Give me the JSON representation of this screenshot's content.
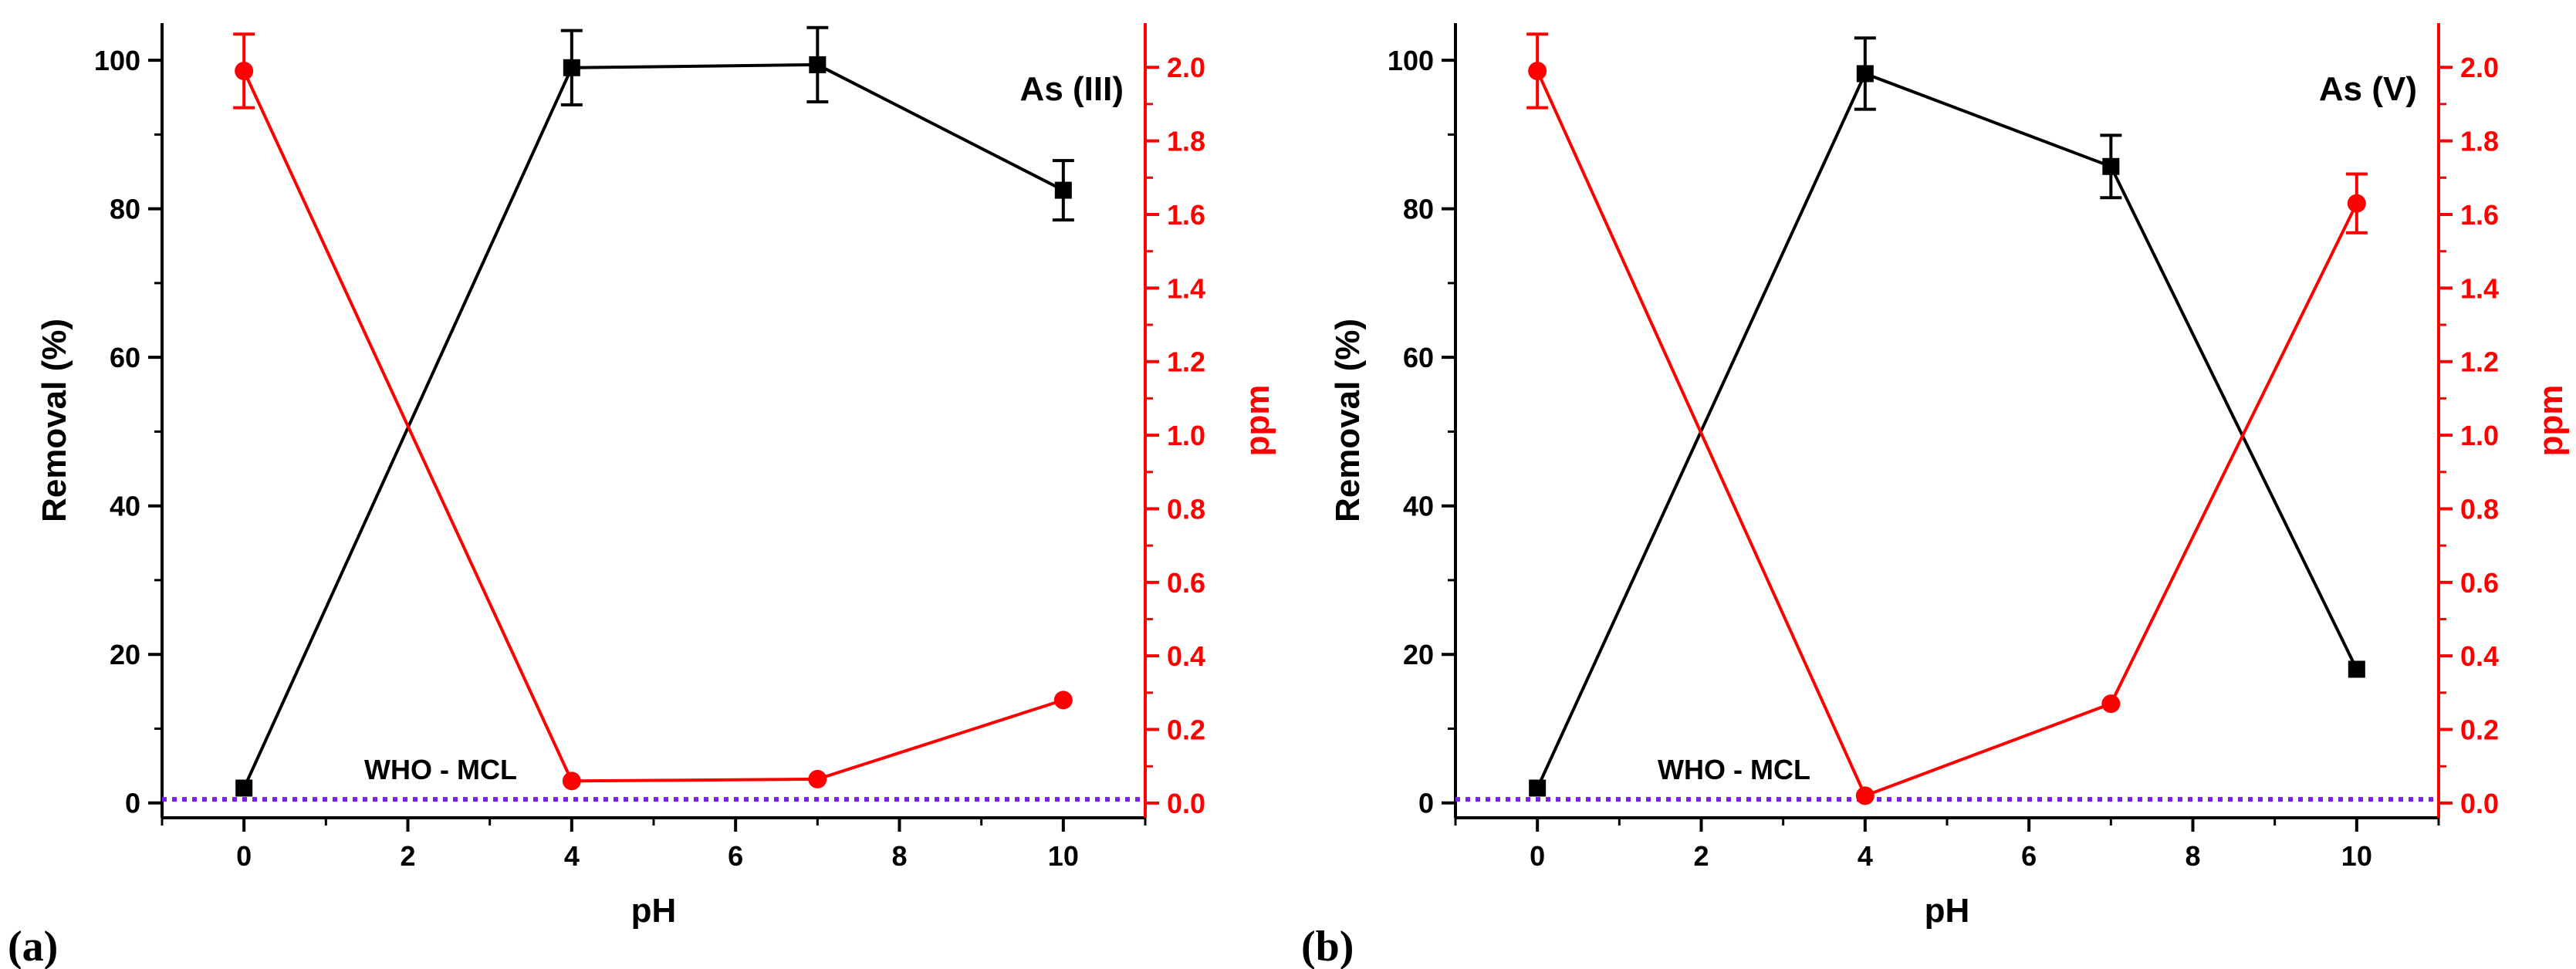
{
  "colors": {
    "removal": "#000000",
    "ppm": "#ff0000",
    "mcl": "#7a1fe6",
    "axis": "#000000"
  },
  "chart_data": [
    {
      "type": "line",
      "panel_label": "(a)",
      "title": "As (III)",
      "xlabel": "pH",
      "ylabel": "Removal (%)",
      "y2label": "ppm",
      "xlim": [
        -1,
        11
      ],
      "ylim": [
        -2,
        105
      ],
      "y2lim": [
        -0.04,
        2.12
      ],
      "xticks": [
        "0",
        "2",
        "4",
        "6",
        "8",
        "10"
      ],
      "yticks": [
        "0",
        "20",
        "40",
        "60",
        "80",
        "100"
      ],
      "y2ticks": [
        "0.0",
        "0.2",
        "0.4",
        "0.6",
        "0.8",
        "1.0",
        "1.2",
        "1.4",
        "1.6",
        "1.8",
        "2.0"
      ],
      "x": [
        0,
        4,
        7,
        10
      ],
      "series": [
        {
          "name": "Removal (%)",
          "axis": "left",
          "marker": "square",
          "values": [
            2,
            99,
            99.4,
            82.5
          ],
          "errors": [
            0,
            5,
            5,
            4
          ]
        },
        {
          "name": "ppm",
          "axis": "right",
          "marker": "circle",
          "values": [
            1.99,
            0.06,
            0.065,
            0.28
          ],
          "errors": [
            0.1,
            0,
            0,
            0
          ]
        }
      ],
      "reference_line": {
        "label": "WHO - MCL",
        "value": 0.01,
        "axis": "right"
      }
    },
    {
      "type": "line",
      "panel_label": "(b)",
      "title": "As (V)",
      "xlabel": "pH",
      "ylabel": "Removal (%)",
      "y2label": "ppm",
      "xlim": [
        -1,
        11
      ],
      "ylim": [
        -2,
        105
      ],
      "y2lim": [
        -0.04,
        2.12
      ],
      "xticks": [
        "0",
        "2",
        "4",
        "6",
        "8",
        "10"
      ],
      "yticks": [
        "0",
        "20",
        "40",
        "60",
        "80",
        "100"
      ],
      "y2ticks": [
        "0.0",
        "0.2",
        "0.4",
        "0.6",
        "0.8",
        "1.0",
        "1.2",
        "1.4",
        "1.6",
        "1.8",
        "2.0"
      ],
      "x": [
        0,
        4,
        7,
        10
      ],
      "series": [
        {
          "name": "Removal (%)",
          "axis": "left",
          "marker": "square",
          "values": [
            2,
            98.2,
            85.7,
            18
          ],
          "errors": [
            0,
            4.8,
            4.2,
            0
          ]
        },
        {
          "name": "ppm",
          "axis": "right",
          "marker": "circle",
          "values": [
            1.99,
            0.02,
            0.27,
            1.63
          ],
          "errors": [
            0.1,
            0,
            0,
            0.08
          ]
        }
      ],
      "reference_line": {
        "label": "WHO - MCL",
        "value": 0.01,
        "axis": "right"
      }
    }
  ]
}
